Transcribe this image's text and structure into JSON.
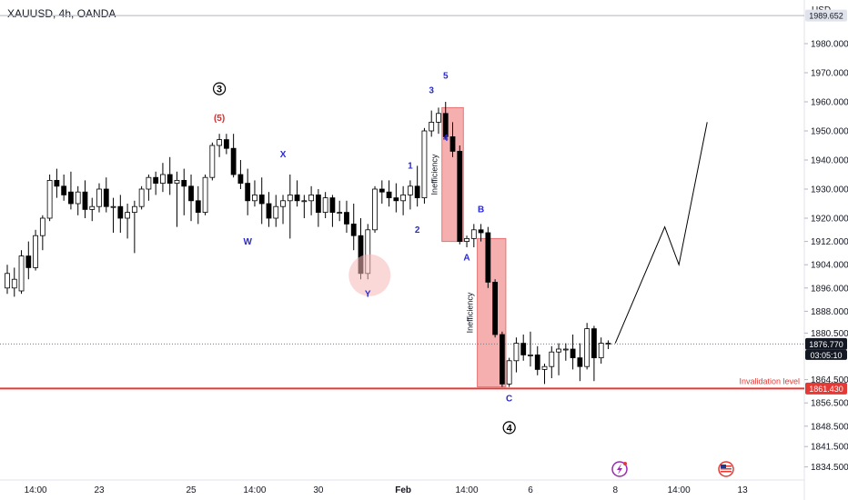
{
  "header": {
    "title": "XAUUSD, 4h, OANDA",
    "currency": "USD"
  },
  "colors": {
    "up": "#ffffff",
    "down": "#000000",
    "zone": "#f3a1a1",
    "invalidation": "#e53935",
    "wave": "#2a2ad0"
  },
  "chart_data": {
    "type": "candlestick",
    "ylim": [
      1830.0,
      1995.0
    ],
    "y_ticks": [
      "1980.000",
      "1970.000",
      "1960.000",
      "1950.000",
      "1940.000",
      "1930.000",
      "1920.000",
      "1912.000",
      "1904.000",
      "1896.000",
      "1888.000",
      "1880.500",
      "1864.500",
      "1856.500",
      "1848.500",
      "1841.500",
      "1834.500"
    ],
    "x_ticks": [
      "14:00",
      "23",
      "25",
      "14:00",
      "30",
      "Feb",
      "14:00",
      "6",
      "8",
      "14:00",
      "13"
    ],
    "price_tags": {
      "upper": "1989.652",
      "current": "1876.770",
      "countdown": "03:05:10",
      "invalidation": "1861.430"
    },
    "invalidation_text": "Invalidation level",
    "zones": [
      {
        "label": "Inefficiency",
        "from_index": 62,
        "to_index": 64,
        "top": 1958.0,
        "bottom": 1912.0
      },
      {
        "label": "Inefficiency",
        "from_index": 67,
        "to_index": 70,
        "top": 1913.0,
        "bottom": 1862.0
      }
    ],
    "wave_labels": [
      {
        "text": "(5)",
        "index": 30,
        "price": 1953.5,
        "style": "red"
      },
      {
        "text": "W",
        "index": 34,
        "price": 1911.0,
        "style": "blue"
      },
      {
        "text": "X",
        "index": 39,
        "price": 1941.0,
        "style": "blue"
      },
      {
        "text": "Y",
        "index": 51,
        "price": 1893.0,
        "style": "blue"
      },
      {
        "text": "1",
        "index": 57,
        "price": 1937.0,
        "style": "blue"
      },
      {
        "text": "2",
        "index": 58,
        "price": 1915.0,
        "style": "blue"
      },
      {
        "text": "3",
        "index": 60,
        "price": 1963.0,
        "style": "blue"
      },
      {
        "text": "4",
        "index": 62,
        "price": 1946.5,
        "style": "blue"
      },
      {
        "text": "5",
        "index": 62,
        "price": 1968.0,
        "style": "blue"
      },
      {
        "text": "A",
        "index": 65,
        "price": 1905.5,
        "style": "blue"
      },
      {
        "text": "B",
        "index": 67,
        "price": 1922.0,
        "style": "blue"
      },
      {
        "text": "C",
        "index": 71,
        "price": 1857.0,
        "style": "blue"
      }
    ],
    "circle_labels": [
      {
        "text": "3",
        "index": 30,
        "price": 1964.5
      },
      {
        "text": "4",
        "index": 71,
        "price": 1848.0
      }
    ],
    "candles": [
      {
        "o": 1896,
        "h": 1904,
        "l": 1894,
        "c": 1901
      },
      {
        "o": 1896,
        "h": 1903,
        "l": 1893,
        "c": 1899
      },
      {
        "o": 1895,
        "h": 1909,
        "l": 1894,
        "c": 1907
      },
      {
        "o": 1907,
        "h": 1912,
        "l": 1899,
        "c": 1903
      },
      {
        "o": 1903,
        "h": 1916,
        "l": 1902,
        "c": 1914
      },
      {
        "o": 1914,
        "h": 1921,
        "l": 1909,
        "c": 1920
      },
      {
        "o": 1920,
        "h": 1935,
        "l": 1919,
        "c": 1933
      },
      {
        "o": 1933,
        "h": 1937,
        "l": 1927,
        "c": 1931
      },
      {
        "o": 1931,
        "h": 1935,
        "l": 1926,
        "c": 1928
      },
      {
        "o": 1929,
        "h": 1936,
        "l": 1923,
        "c": 1925
      },
      {
        "o": 1925,
        "h": 1931,
        "l": 1921,
        "c": 1929
      },
      {
        "o": 1929,
        "h": 1933,
        "l": 1920,
        "c": 1923
      },
      {
        "o": 1923,
        "h": 1927,
        "l": 1919,
        "c": 1924
      },
      {
        "o": 1924,
        "h": 1932,
        "l": 1922,
        "c": 1930
      },
      {
        "o": 1930,
        "h": 1934,
        "l": 1922,
        "c": 1924
      },
      {
        "o": 1924,
        "h": 1927,
        "l": 1915,
        "c": 1924
      },
      {
        "o": 1924,
        "h": 1928,
        "l": 1915,
        "c": 1920
      },
      {
        "o": 1920,
        "h": 1925,
        "l": 1913,
        "c": 1922
      },
      {
        "o": 1922,
        "h": 1926,
        "l": 1908,
        "c": 1924
      },
      {
        "o": 1924,
        "h": 1931,
        "l": 1923,
        "c": 1930
      },
      {
        "o": 1930,
        "h": 1935,
        "l": 1926,
        "c": 1934
      },
      {
        "o": 1934,
        "h": 1936,
        "l": 1928,
        "c": 1932
      },
      {
        "o": 1932,
        "h": 1939,
        "l": 1929,
        "c": 1935
      },
      {
        "o": 1935,
        "h": 1941,
        "l": 1928,
        "c": 1932
      },
      {
        "o": 1932,
        "h": 1936,
        "l": 1917,
        "c": 1933
      },
      {
        "o": 1933,
        "h": 1937,
        "l": 1921,
        "c": 1931
      },
      {
        "o": 1931,
        "h": 1935,
        "l": 1919,
        "c": 1926
      },
      {
        "o": 1926,
        "h": 1931,
        "l": 1918,
        "c": 1922
      },
      {
        "o": 1922,
        "h": 1935,
        "l": 1921,
        "c": 1934
      },
      {
        "o": 1934,
        "h": 1946,
        "l": 1933,
        "c": 1945
      },
      {
        "o": 1945,
        "h": 1949,
        "l": 1941,
        "c": 1947
      },
      {
        "o": 1947,
        "h": 1949,
        "l": 1942,
        "c": 1944
      },
      {
        "o": 1944,
        "h": 1949,
        "l": 1934,
        "c": 1935
      },
      {
        "o": 1935,
        "h": 1940,
        "l": 1930,
        "c": 1932
      },
      {
        "o": 1932,
        "h": 1937,
        "l": 1921,
        "c": 1926
      },
      {
        "o": 1926,
        "h": 1933,
        "l": 1924,
        "c": 1928
      },
      {
        "o": 1928,
        "h": 1934,
        "l": 1918,
        "c": 1925
      },
      {
        "o": 1925,
        "h": 1929,
        "l": 1917,
        "c": 1920
      },
      {
        "o": 1920,
        "h": 1928,
        "l": 1917,
        "c": 1924
      },
      {
        "o": 1924,
        "h": 1928,
        "l": 1918,
        "c": 1926
      },
      {
        "o": 1926,
        "h": 1935,
        "l": 1913,
        "c": 1928
      },
      {
        "o": 1928,
        "h": 1933,
        "l": 1924,
        "c": 1926
      },
      {
        "o": 1926,
        "h": 1928,
        "l": 1920,
        "c": 1926
      },
      {
        "o": 1926,
        "h": 1931,
        "l": 1921,
        "c": 1928
      },
      {
        "o": 1928,
        "h": 1930,
        "l": 1917,
        "c": 1922
      },
      {
        "o": 1922,
        "h": 1929,
        "l": 1920,
        "c": 1927
      },
      {
        "o": 1927,
        "h": 1928,
        "l": 1917,
        "c": 1922
      },
      {
        "o": 1922,
        "h": 1926,
        "l": 1919,
        "c": 1922
      },
      {
        "o": 1922,
        "h": 1926,
        "l": 1915,
        "c": 1918
      },
      {
        "o": 1918,
        "h": 1925,
        "l": 1909,
        "c": 1914
      },
      {
        "o": 1914,
        "h": 1920,
        "l": 1899,
        "c": 1901
      },
      {
        "o": 1901,
        "h": 1918,
        "l": 1899,
        "c": 1916
      },
      {
        "o": 1916,
        "h": 1931,
        "l": 1915,
        "c": 1930
      },
      {
        "o": 1930,
        "h": 1933,
        "l": 1925,
        "c": 1929
      },
      {
        "o": 1929,
        "h": 1933,
        "l": 1924,
        "c": 1927
      },
      {
        "o": 1927,
        "h": 1932,
        "l": 1922,
        "c": 1926
      },
      {
        "o": 1926,
        "h": 1931,
        "l": 1921,
        "c": 1928
      },
      {
        "o": 1928,
        "h": 1933,
        "l": 1923,
        "c": 1931
      },
      {
        "o": 1931,
        "h": 1938,
        "l": 1924,
        "c": 1927
      },
      {
        "o": 1927,
        "h": 1951,
        "l": 1925,
        "c": 1950
      },
      {
        "o": 1950,
        "h": 1957,
        "l": 1948,
        "c": 1953
      },
      {
        "o": 1953,
        "h": 1958,
        "l": 1949,
        "c": 1956
      },
      {
        "o": 1956,
        "h": 1960,
        "l": 1947,
        "c": 1948
      },
      {
        "o": 1948,
        "h": 1953,
        "l": 1941,
        "c": 1943
      },
      {
        "o": 1943,
        "h": 1945,
        "l": 1911,
        "c": 1912
      },
      {
        "o": 1912,
        "h": 1914,
        "l": 1910,
        "c": 1913
      },
      {
        "o": 1913,
        "h": 1918,
        "l": 1910,
        "c": 1916
      },
      {
        "o": 1916,
        "h": 1918,
        "l": 1912,
        "c": 1915
      },
      {
        "o": 1915,
        "h": 1917,
        "l": 1896,
        "c": 1898
      },
      {
        "o": 1898,
        "h": 1899,
        "l": 1879,
        "c": 1880
      },
      {
        "o": 1880,
        "h": 1881,
        "l": 1862,
        "c": 1863
      },
      {
        "o": 1863,
        "h": 1872,
        "l": 1862,
        "c": 1871
      },
      {
        "o": 1871,
        "h": 1879,
        "l": 1867,
        "c": 1877
      },
      {
        "o": 1877,
        "h": 1880,
        "l": 1871,
        "c": 1873
      },
      {
        "o": 1873,
        "h": 1881,
        "l": 1869,
        "c": 1873
      },
      {
        "o": 1873,
        "h": 1876,
        "l": 1866,
        "c": 1868
      },
      {
        "o": 1868,
        "h": 1870,
        "l": 1863,
        "c": 1869
      },
      {
        "o": 1869,
        "h": 1876,
        "l": 1865,
        "c": 1874
      },
      {
        "o": 1874,
        "h": 1877,
        "l": 1866,
        "c": 1875
      },
      {
        "o": 1875,
        "h": 1877,
        "l": 1871,
        "c": 1875
      },
      {
        "o": 1875,
        "h": 1880,
        "l": 1868,
        "c": 1872
      },
      {
        "o": 1872,
        "h": 1877,
        "l": 1864,
        "c": 1869
      },
      {
        "o": 1869,
        "h": 1884,
        "l": 1868,
        "c": 1882
      },
      {
        "o": 1882,
        "h": 1883,
        "l": 1864,
        "c": 1872
      },
      {
        "o": 1872,
        "h": 1879,
        "l": 1870,
        "c": 1877
      },
      {
        "o": 1877,
        "h": 1878,
        "l": 1875,
        "c": 1877
      }
    ],
    "projection": [
      {
        "index": 86,
        "price": 1877
      },
      {
        "index": 93,
        "price": 1917
      },
      {
        "index": 95,
        "price": 1904
      },
      {
        "index": 99,
        "price": 1953
      }
    ]
  }
}
